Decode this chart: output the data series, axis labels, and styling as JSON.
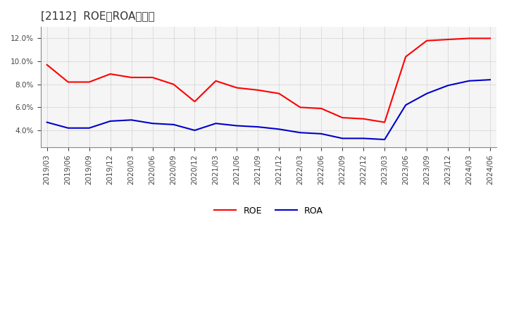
{
  "title": "[2112]  ROE、ROAの推移",
  "labels": [
    "2019/03",
    "2019/06",
    "2019/09",
    "2019/12",
    "2020/03",
    "2020/06",
    "2020/09",
    "2020/12",
    "2021/03",
    "2021/06",
    "2021/09",
    "2021/12",
    "2022/03",
    "2022/06",
    "2022/09",
    "2022/12",
    "2023/03",
    "2023/06",
    "2023/09",
    "2023/12",
    "2024/03",
    "2024/06"
  ],
  "roe": [
    9.7,
    8.2,
    8.2,
    8.9,
    8.6,
    8.6,
    8.0,
    6.5,
    8.3,
    7.7,
    7.5,
    7.2,
    6.0,
    5.9,
    5.1,
    5.0,
    4.7,
    10.4,
    11.8,
    11.9,
    12.0,
    12.0
  ],
  "roa": [
    4.7,
    4.2,
    4.2,
    4.8,
    4.9,
    4.6,
    4.5,
    4.0,
    4.6,
    4.4,
    4.3,
    4.1,
    3.8,
    3.7,
    3.3,
    3.3,
    3.2,
    6.2,
    7.2,
    7.9,
    8.3,
    8.4
  ],
  "roe_color": "#ff0000",
  "roa_color": "#0000cc",
  "background_color": "#ffffff",
  "plot_bg_color": "#f5f5f5",
  "grid_color": "#aaaaaa",
  "ylim": [
    2.5,
    13.0
  ],
  "yticks": [
    4.0,
    6.0,
    8.0,
    10.0,
    12.0
  ],
  "title_fontsize": 11,
  "legend_fontsize": 9,
  "tick_fontsize": 7.5
}
